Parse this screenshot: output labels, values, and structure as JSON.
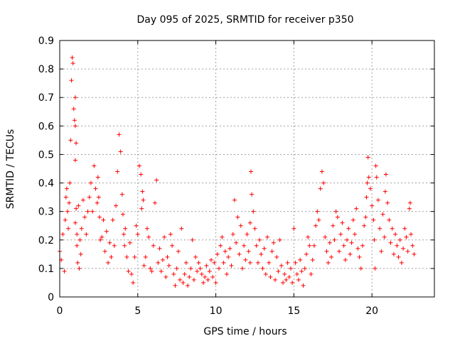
{
  "chart_data": {
    "type": "scatter",
    "title": "Day 095 of 2025, SRMTID for receiver p350",
    "xlabel": "GPS time / hours",
    "ylabel": "SRMTID / TECUs",
    "xlim": [
      0,
      24
    ],
    "ylim": [
      0,
      0.9
    ],
    "xticks": [
      0,
      5,
      10,
      15,
      20
    ],
    "yticks": [
      0,
      0.1,
      0.2,
      0.3,
      0.4,
      0.5,
      0.6,
      0.7,
      0.8,
      0.9
    ],
    "xtick_labels": [
      "0",
      "5",
      "10",
      "15",
      "20"
    ],
    "ytick_labels": [
      "0",
      "0.1",
      "0.2",
      "0.3",
      "0.4",
      "0.5",
      "0.6",
      "0.7",
      "0.8",
      "0.9"
    ],
    "grid": true,
    "marker": "+",
    "color": "#ff0000",
    "series": [
      {
        "name": "SRMTID",
        "x": [
          0.0,
          0.1,
          0.2,
          0.3,
          0.35,
          0.4,
          0.45,
          0.5,
          0.55,
          0.6,
          0.65,
          0.7,
          0.75,
          0.8,
          0.85,
          0.9,
          0.95,
          1.0,
          1.0,
          1.0,
          1.0,
          1.05,
          1.05,
          1.1,
          1.1,
          1.15,
          1.2,
          1.25,
          1.3,
          1.35,
          1.4,
          1.5,
          1.6,
          1.7,
          1.8,
          1.9,
          2.0,
          2.1,
          2.2,
          2.3,
          2.4,
          2.45,
          2.5,
          2.55,
          2.6,
          2.7,
          2.8,
          2.9,
          3.0,
          3.1,
          3.2,
          3.3,
          3.4,
          3.5,
          3.6,
          3.7,
          3.8,
          3.9,
          4.0,
          4.05,
          4.1,
          4.15,
          4.2,
          4.3,
          4.4,
          4.5,
          4.6,
          4.7,
          4.8,
          4.9,
          5.0,
          5.1,
          5.2,
          5.25,
          5.3,
          5.35,
          5.4,
          5.5,
          5.6,
          5.7,
          5.8,
          5.9,
          6.0,
          6.1,
          6.2,
          6.3,
          6.4,
          6.5,
          6.6,
          6.7,
          6.8,
          6.9,
          7.0,
          7.1,
          7.2,
          7.3,
          7.4,
          7.5,
          7.6,
          7.7,
          7.8,
          7.9,
          8.0,
          8.1,
          8.2,
          8.3,
          8.4,
          8.5,
          8.6,
          8.7,
          8.8,
          8.9,
          9.0,
          9.1,
          9.2,
          9.3,
          9.4,
          9.5,
          9.6,
          9.7,
          9.8,
          9.9,
          10.0,
          10.1,
          10.2,
          10.3,
          10.4,
          10.5,
          10.6,
          10.7,
          10.8,
          10.9,
          11.0,
          11.1,
          11.2,
          11.3,
          11.4,
          11.5,
          11.6,
          11.7,
          11.8,
          11.9,
          12.0,
          12.1,
          12.2,
          12.2,
          12.25,
          12.3,
          12.4,
          12.5,
          12.6,
          12.7,
          12.8,
          12.9,
          13.0,
          13.1,
          13.2,
          13.3,
          13.4,
          13.5,
          13.6,
          13.7,
          13.8,
          13.9,
          14.0,
          14.1,
          14.2,
          14.3,
          14.4,
          14.5,
          14.6,
          14.7,
          14.8,
          14.9,
          15.0,
          15.1,
          15.2,
          15.3,
          15.4,
          15.5,
          15.6,
          15.7,
          15.8,
          15.9,
          16.0,
          16.1,
          16.2,
          16.3,
          16.4,
          16.5,
          16.6,
          16.7,
          16.8,
          16.9,
          17.0,
          17.1,
          17.2,
          17.3,
          17.4,
          17.5,
          17.6,
          17.7,
          17.8,
          17.9,
          18.0,
          18.1,
          18.2,
          18.3,
          18.4,
          18.5,
          18.6,
          18.7,
          18.8,
          18.9,
          19.0,
          19.1,
          19.2,
          19.3,
          19.4,
          19.5,
          19.6,
          19.65,
          19.7,
          19.75,
          19.8,
          19.9,
          20.0,
          20.1,
          20.15,
          20.2,
          20.25,
          20.3,
          20.4,
          20.5,
          20.6,
          20.7,
          20.8,
          20.85,
          20.9,
          21.0,
          21.1,
          21.2,
          21.3,
          21.4,
          21.5,
          21.6,
          21.7,
          21.8,
          21.9,
          22.0,
          22.1,
          22.2,
          22.3,
          22.4,
          22.45,
          22.5,
          22.6,
          22.7
        ],
        "y": [
          0.16,
          0.13,
          0.22,
          0.09,
          0.27,
          0.35,
          0.38,
          0.3,
          0.24,
          0.33,
          0.4,
          0.55,
          0.76,
          0.84,
          0.82,
          0.66,
          0.62,
          0.6,
          0.7,
          0.48,
          0.26,
          0.54,
          0.31,
          0.22,
          0.18,
          0.12,
          0.32,
          0.1,
          0.2,
          0.15,
          0.24,
          0.34,
          0.28,
          0.22,
          0.3,
          0.35,
          0.4,
          0.3,
          0.46,
          0.38,
          0.33,
          0.42,
          0.35,
          0.28,
          0.2,
          0.21,
          0.27,
          0.16,
          0.23,
          0.12,
          0.19,
          0.14,
          0.27,
          0.18,
          0.32,
          0.44,
          0.57,
          0.51,
          0.36,
          0.29,
          0.22,
          0.18,
          0.24,
          0.14,
          0.09,
          0.19,
          0.08,
          0.05,
          0.14,
          0.25,
          0.22,
          0.46,
          0.43,
          0.31,
          0.37,
          0.34,
          0.11,
          0.14,
          0.24,
          0.21,
          0.1,
          0.09,
          0.18,
          0.33,
          0.41,
          0.12,
          0.17,
          0.09,
          0.13,
          0.21,
          0.07,
          0.14,
          0.11,
          0.22,
          0.18,
          0.08,
          0.04,
          0.1,
          0.16,
          0.06,
          0.24,
          0.05,
          0.08,
          0.12,
          0.04,
          0.07,
          0.1,
          0.2,
          0.06,
          0.14,
          0.09,
          0.12,
          0.1,
          0.08,
          0.05,
          0.07,
          0.11,
          0.06,
          0.09,
          0.13,
          0.07,
          0.12,
          0.05,
          0.15,
          0.1,
          0.18,
          0.21,
          0.12,
          0.16,
          0.08,
          0.14,
          0.17,
          0.11,
          0.22,
          0.34,
          0.19,
          0.28,
          0.15,
          0.25,
          0.1,
          0.18,
          0.13,
          0.22,
          0.16,
          0.12,
          0.26,
          0.44,
          0.36,
          0.3,
          0.24,
          0.18,
          0.12,
          0.2,
          0.15,
          0.1,
          0.17,
          0.08,
          0.21,
          0.12,
          0.07,
          0.16,
          0.19,
          0.06,
          0.14,
          0.09,
          0.2,
          0.11,
          0.05,
          0.08,
          0.06,
          0.12,
          0.07,
          0.1,
          0.05,
          0.24,
          0.12,
          0.08,
          0.06,
          0.13,
          0.09,
          0.04,
          0.1,
          0.15,
          0.21,
          0.18,
          0.08,
          0.13,
          0.18,
          0.25,
          0.3,
          0.27,
          0.38,
          0.44,
          0.4,
          0.21,
          0.16,
          0.12,
          0.19,
          0.14,
          0.25,
          0.2,
          0.3,
          0.28,
          0.16,
          0.22,
          0.26,
          0.18,
          0.13,
          0.2,
          0.24,
          0.15,
          0.19,
          0.27,
          0.22,
          0.31,
          0.17,
          0.14,
          0.1,
          0.18,
          0.25,
          0.28,
          0.35,
          0.4,
          0.49,
          0.42,
          0.38,
          0.32,
          0.27,
          0.2,
          0.1,
          0.46,
          0.42,
          0.34,
          0.24,
          0.16,
          0.29,
          0.21,
          0.37,
          0.43,
          0.33,
          0.27,
          0.19,
          0.24,
          0.15,
          0.22,
          0.18,
          0.14,
          0.2,
          0.12,
          0.17,
          0.24,
          0.21,
          0.16,
          0.31,
          0.33,
          0.22,
          0.18,
          0.15
        ]
      }
    ]
  }
}
